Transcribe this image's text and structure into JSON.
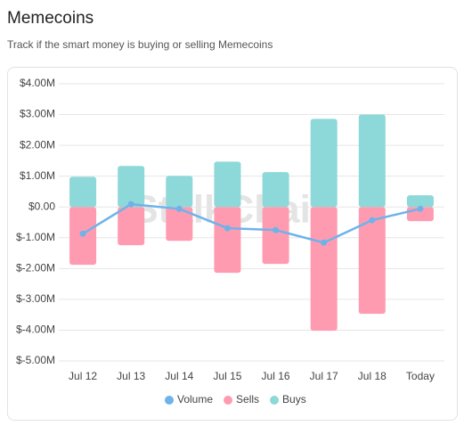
{
  "header": {
    "title": "Memecoins",
    "subtitle": "Track if the smart money is buying or selling Memecoins"
  },
  "chart_data": {
    "type": "bar",
    "watermark": "StalkChain",
    "categories": [
      "Jul 12",
      "Jul 13",
      "Jul 14",
      "Jul 15",
      "Jul 16",
      "Jul 17",
      "Jul 18",
      "Today"
    ],
    "series": [
      {
        "name": "Volume",
        "type": "line",
        "color": "#6db3ea",
        "values": [
          -0.87,
          0.09,
          -0.06,
          -0.69,
          -0.75,
          -1.16,
          -0.43,
          -0.06
        ]
      },
      {
        "name": "Sells",
        "type": "bar",
        "color": "#ff9bb0",
        "values": [
          -1.88,
          -1.24,
          -1.1,
          -2.14,
          -1.85,
          -4.02,
          -3.47,
          -0.46
        ]
      },
      {
        "name": "Buys",
        "type": "bar",
        "color": "#8dd8d8",
        "values": [
          0.98,
          1.33,
          1.01,
          1.47,
          1.13,
          2.86,
          3.0,
          0.38
        ]
      }
    ],
    "ylim": [
      -5,
      4
    ],
    "yticks": [
      {
        "value": 4,
        "label": "$4.00M"
      },
      {
        "value": 3,
        "label": "$3.00M"
      },
      {
        "value": 2,
        "label": "$2.00M"
      },
      {
        "value": 1,
        "label": "$1.00M"
      },
      {
        "value": 0,
        "label": "$0.00"
      },
      {
        "value": -1,
        "label": "$-1.00M"
      },
      {
        "value": -2,
        "label": "$-2.00M"
      },
      {
        "value": -3,
        "label": "$-3.00M"
      },
      {
        "value": -4,
        "label": "$-4.00M"
      },
      {
        "value": -5,
        "label": "$-5.00M"
      }
    ],
    "grid": true
  }
}
